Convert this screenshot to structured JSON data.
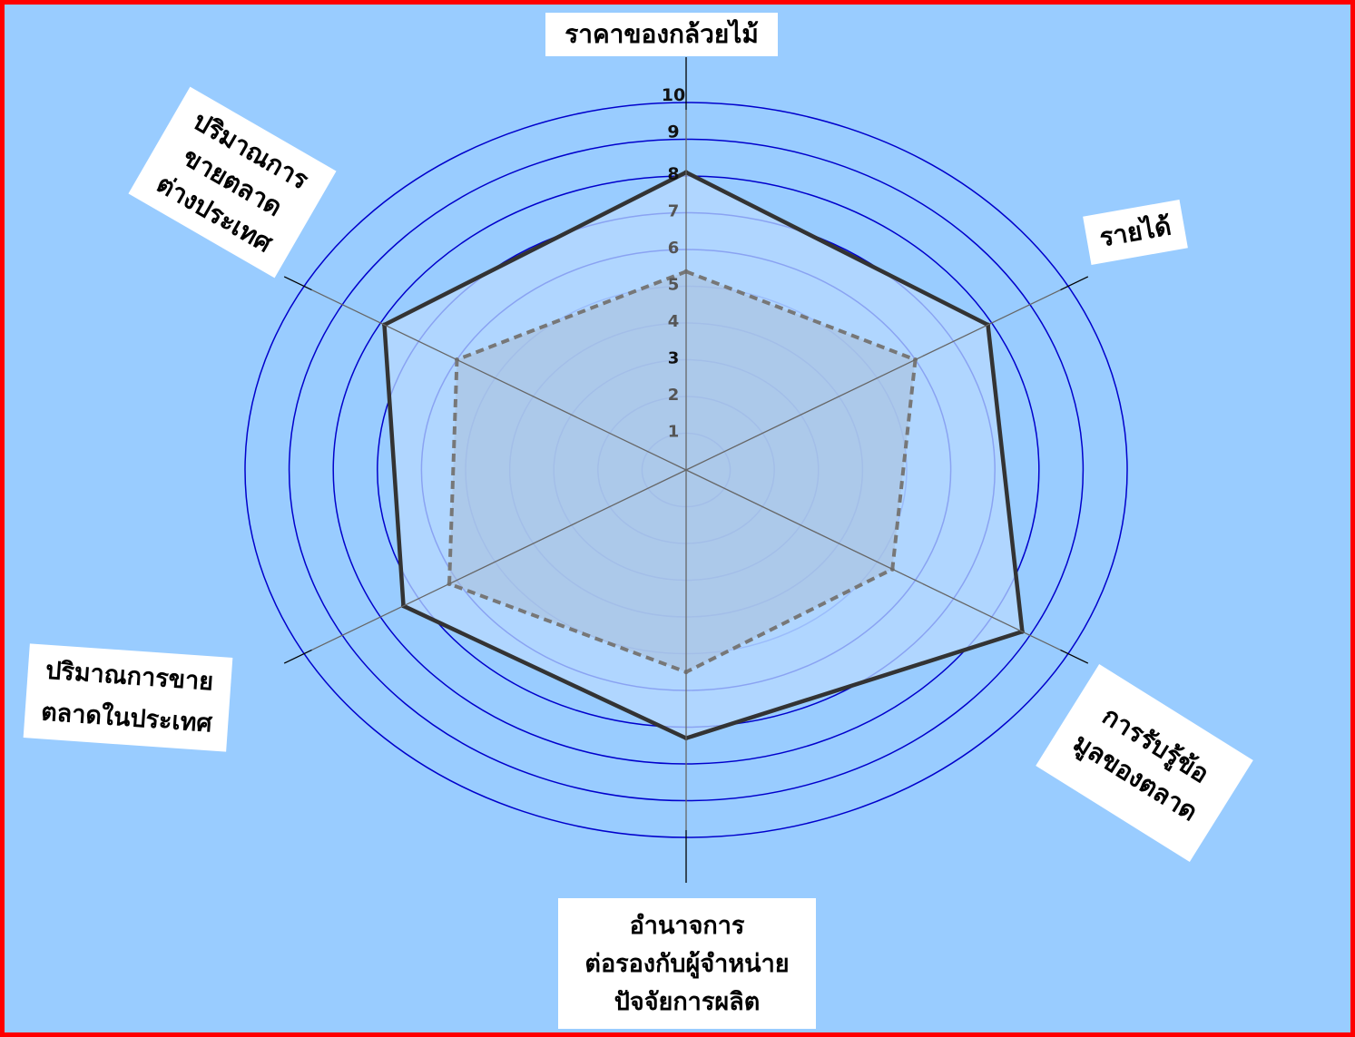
{
  "colors": {
    "background": "#99ccff",
    "frame": "#ff0000",
    "ring_outer": "#0000cc",
    "ring_inner": "#4466ee",
    "outer_series": "#333333",
    "outer_fill": "#b8d9ff",
    "inner_series": "#777777",
    "inner_fill": "#a9bfd9",
    "label_box": "#ffffff"
  },
  "chart_data": {
    "type": "radar",
    "axes": [
      [
        "ราคาของกล้วยไม้"
      ],
      [
        "รายได้"
      ],
      [
        "การรับรู้ข้อ",
        "มูลของตลาด"
      ],
      [
        "อำนาจการ",
        "ต่อรองกับผู้จำหน่าย",
        "ปัจจัยการผลิต"
      ],
      [
        "ปริมาณการขาย",
        "ตลาดในประเทศ"
      ],
      [
        "ปริมาณการ",
        "ขายตลาด",
        "ต่างประเทศ"
      ]
    ],
    "ticks": [
      "1",
      "2",
      "3",
      "4",
      "5",
      "6",
      "7",
      "8",
      "9",
      "10"
    ],
    "range": [
      0,
      10
    ],
    "series": [
      {
        "style": "solid",
        "values": [
          8.1,
          7.9,
          8.8,
          7.3,
          7.4,
          7.9
        ]
      },
      {
        "style": "dashed",
        "values": [
          5.4,
          6.0,
          5.4,
          5.5,
          6.2,
          6.0
        ]
      }
    ]
  }
}
